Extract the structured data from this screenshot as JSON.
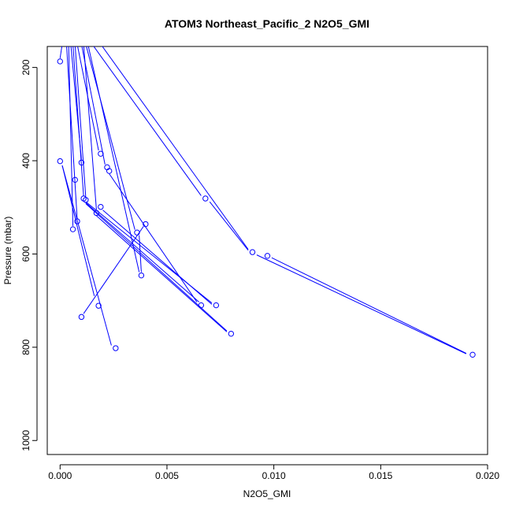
{
  "chart_data": {
    "type": "scatter",
    "title": "ATOM3 Northeast_Pacific_2 N2O5_GMI",
    "xlabel": "N2O5_GMI",
    "ylabel": "Pressure (mbar)",
    "xlim": [
      -0.0006,
      0.02
    ],
    "ylim": [
      1030,
      155
    ],
    "y_reversed": true,
    "x_ticks": [
      0.0,
      0.005,
      0.01,
      0.015,
      0.02
    ],
    "x_tick_labels": [
      "0.000",
      "0.005",
      "0.010",
      "0.015",
      "0.020"
    ],
    "y_ticks": [
      200,
      400,
      600,
      800,
      1000
    ],
    "y_tick_labels": [
      "200",
      "400",
      "600",
      "800",
      "1000"
    ],
    "grid": false,
    "legend": "none",
    "series_color": "#0000ff",
    "points": [
      {
        "x": 0.0,
        "y": 187
      },
      {
        "x": 0.0019,
        "y": 385
      },
      {
        "x": 0.0,
        "y": 401
      },
      {
        "x": 0.001,
        "y": 404
      },
      {
        "x": 0.0022,
        "y": 414
      },
      {
        "x": 0.0023,
        "y": 422
      },
      {
        "x": 0.0007,
        "y": 441
      },
      {
        "x": 0.0068,
        "y": 481
      },
      {
        "x": 0.0011,
        "y": 481
      },
      {
        "x": 0.0012,
        "y": 484
      },
      {
        "x": 0.0019,
        "y": 499
      },
      {
        "x": 0.0017,
        "y": 512
      },
      {
        "x": 0.0008,
        "y": 530
      },
      {
        "x": 0.004,
        "y": 536
      },
      {
        "x": 0.0006,
        "y": 547
      },
      {
        "x": 0.0036,
        "y": 554
      },
      {
        "x": 0.009,
        "y": 596
      },
      {
        "x": 0.0097,
        "y": 604
      },
      {
        "x": 0.0038,
        "y": 646
      },
      {
        "x": 0.0066,
        "y": 710
      },
      {
        "x": 0.0073,
        "y": 710
      },
      {
        "x": 0.0018,
        "y": 711
      },
      {
        "x": 0.001,
        "y": 735
      },
      {
        "x": 0.008,
        "y": 771
      },
      {
        "x": 0.0026,
        "y": 802
      },
      {
        "x": 0.0193,
        "y": 816
      }
    ],
    "segments": [
      [
        [
          0.0001,
          150
        ],
        [
          0.0,
          180
        ]
      ],
      [
        [
          0.0003,
          150
        ],
        [
          0.0008,
          525
        ]
      ],
      [
        [
          0.0004,
          150
        ],
        [
          0.0006,
          540
        ]
      ],
      [
        [
          0.0005,
          150
        ],
        [
          0.001,
          398
        ]
      ],
      [
        [
          0.0006,
          150
        ],
        [
          0.0011,
          476
        ]
      ],
      [
        [
          0.0007,
          150
        ],
        [
          0.0012,
          478
        ]
      ],
      [
        [
          0.0008,
          150
        ],
        [
          0.0018,
          378
        ]
      ],
      [
        [
          0.001,
          150
        ],
        [
          0.0021,
          408
        ]
      ],
      [
        [
          0.0011,
          150
        ],
        [
          0.0017,
          505
        ]
      ],
      [
        [
          0.0012,
          150
        ],
        [
          0.0035,
          548
        ]
      ],
      [
        [
          0.0013,
          150
        ],
        [
          0.0037,
          639
        ]
      ],
      [
        [
          0.0015,
          150
        ],
        [
          0.0066,
          475
        ]
      ],
      [
        [
          0.0019,
          150
        ],
        [
          0.0088,
          590
        ]
      ],
      [
        [
          0.0001,
          410
        ],
        [
          0.0016,
          690
        ]
      ],
      [
        [
          0.0001,
          410
        ],
        [
          0.0024,
          796
        ]
      ],
      [
        [
          0.0012,
          488
        ],
        [
          0.0071,
          705
        ]
      ],
      [
        [
          0.0012,
          490
        ],
        [
          0.0065,
          703
        ]
      ],
      [
        [
          0.0012,
          492
        ],
        [
          0.0078,
          765
        ]
      ],
      [
        [
          0.002,
          506
        ],
        [
          0.0071,
          708
        ]
      ],
      [
        [
          0.0017,
          518
        ],
        [
          0.0078,
          767
        ]
      ],
      [
        [
          0.0023,
          428
        ],
        [
          0.0064,
          703
        ]
      ],
      [
        [
          0.0011,
          728
        ],
        [
          0.0039,
          541
        ]
      ],
      [
        [
          0.007,
          488
        ],
        [
          0.0088,
          592
        ]
      ],
      [
        [
          0.0092,
          602
        ],
        [
          0.019,
          814
        ]
      ],
      [
        [
          0.0099,
          608
        ],
        [
          0.019,
          813
        ]
      ],
      [
        [
          0.0037,
          560
        ],
        [
          0.0038,
          639
        ]
      ]
    ]
  }
}
